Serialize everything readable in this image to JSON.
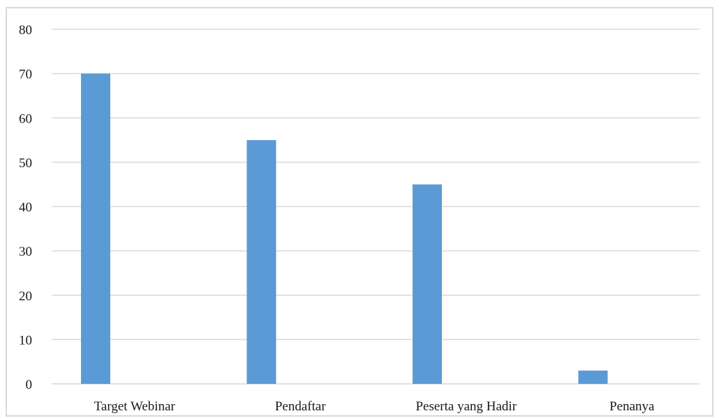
{
  "chart_data": {
    "type": "bar",
    "title": "",
    "xlabel": "",
    "ylabel": "",
    "categories": [
      "Target Webinar",
      "Pendaftar",
      "Peserta yang Hadir",
      "Penanya"
    ],
    "series": [
      {
        "values": [
          70,
          55,
          45,
          3
        ]
      }
    ],
    "ylim": [
      0,
      80
    ],
    "yticks": [
      0,
      10,
      20,
      30,
      40,
      50,
      60,
      70,
      80
    ],
    "grid": true,
    "legend": "none",
    "colors": {
      "bar": "#5b9bd5",
      "grid": "#d9d9d9",
      "frame": "#d9d9d9",
      "text": "#1a1a1a"
    }
  }
}
